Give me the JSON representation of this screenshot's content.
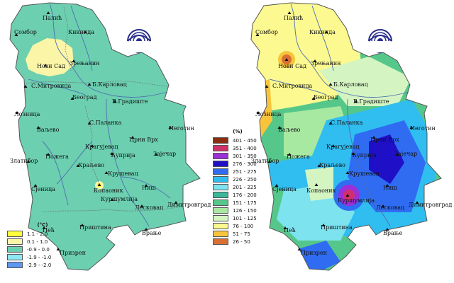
{
  "left_map": {
    "unit_label": "(°C)",
    "legend": [
      {
        "label": "1.1 - 2.0",
        "color": "#ffff3c"
      },
      {
        "label": "0.1 - 1.0",
        "color": "#fbf5a8"
      },
      {
        "label": "-0.9 - 0.0",
        "color": "#6ccfb0"
      },
      {
        "label": "-1.9 - -1.0",
        "color": "#8fe7f3"
      },
      {
        "label": "-2.9 - -2.0",
        "color": "#5c98f0"
      }
    ]
  },
  "right_map": {
    "unit_label": "(%)",
    "legend": [
      {
        "label": "401 - 450",
        "color": "#8c2d10"
      },
      {
        "label": "351 - 400",
        "color": "#d0306a"
      },
      {
        "label": "301 - 350",
        "color": "#9b2fd8"
      },
      {
        "label": "276 - 300",
        "color": "#1f10c8"
      },
      {
        "label": "251 - 275",
        "color": "#2f6cf2"
      },
      {
        "label": "226 - 250",
        "color": "#30bdf0"
      },
      {
        "label": "201 - 225",
        "color": "#7ce3ef"
      },
      {
        "label": "176 - 200",
        "color": "#3bb79a"
      },
      {
        "label": "151 - 175",
        "color": "#56c78a"
      },
      {
        "label": "126 - 150",
        "color": "#a7e9a0"
      },
      {
        "label": "101 - 125",
        "color": "#d4f5c2"
      },
      {
        "label": "76 - 100",
        "color": "#fbf98f"
      },
      {
        "label": "51 - 75",
        "color": "#f7c43c"
      },
      {
        "label": "26 - 50",
        "color": "#d97033"
      }
    ]
  },
  "cities": {
    "palic": "Палић",
    "sombor": "Сомбор",
    "kikinda": "Кикинда",
    "novi_sad": "Нови Сад",
    "zrenjanin": "Зрењанин",
    "s_mitrovica": "С.Митровица",
    "b_karlovac": "Б.Карловац",
    "loznica": "Лозница",
    "beograd": "Београд",
    "v_gradiste": "В.Градиште",
    "valjevo": "Ваљево",
    "s_palanka": "С.Паланка",
    "crni_vrh": "Црни Врх",
    "negotin": "Неготин",
    "zlatibor": "Златибор",
    "kragujevac": "Крагујевац",
    "cuprija": "Ћуприја",
    "zajecar": "Зајечар",
    "pozega": "Пожега",
    "kraljevo": "Краљево",
    "krusevac": "Крушевац",
    "sjenica": "Сјеница",
    "kopaonik": "Копаоник",
    "nis": "Ниш",
    "kursumlija": "Куршумлија",
    "leskovac": "Лесковац",
    "dimitrovgrad": "Димитровград",
    "pec": "Пећ",
    "pristina": "Приштина",
    "vranje": "Врање",
    "prizren": "Призрен"
  }
}
